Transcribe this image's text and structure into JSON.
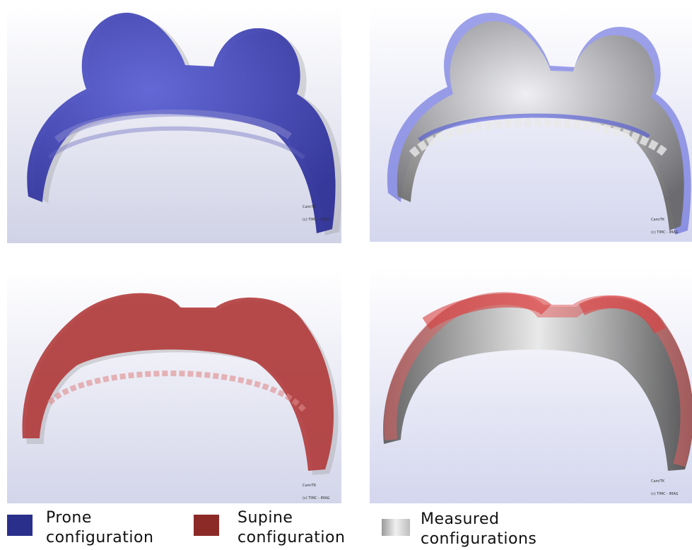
{
  "panels": [
    {
      "id": "prone",
      "watermark": [
        "CamiTK",
        "(c) TIMC - IMAG"
      ]
    },
    {
      "id": "prone-vs-measured",
      "watermark": [
        "CamiTK",
        "(c) TIMC - IMAG"
      ]
    },
    {
      "id": "supine",
      "watermark": [
        "CamiTK",
        "(c) TIMC - IMAG"
      ]
    },
    {
      "id": "supine-vs-measured",
      "watermark": [
        "CamiTK",
        "(c) TIMC - IMAG"
      ]
    }
  ],
  "legend": {
    "prone": {
      "line1": "Prone",
      "line2": "configuration",
      "color": "#2b2f8c"
    },
    "supine": {
      "line1": "Supine",
      "line2": "configuration",
      "color": "#8c2a28"
    },
    "measured": {
      "line1": "Measured",
      "line2": "configurations",
      "color": "#d9d9d9"
    }
  },
  "colors": {
    "background_top": "#ffffff",
    "background_bottom": "#d3d5ea",
    "prone_fill": "#3a3db8",
    "supine_fill": "#b03535",
    "measured_fill": "#cfcfcf"
  }
}
